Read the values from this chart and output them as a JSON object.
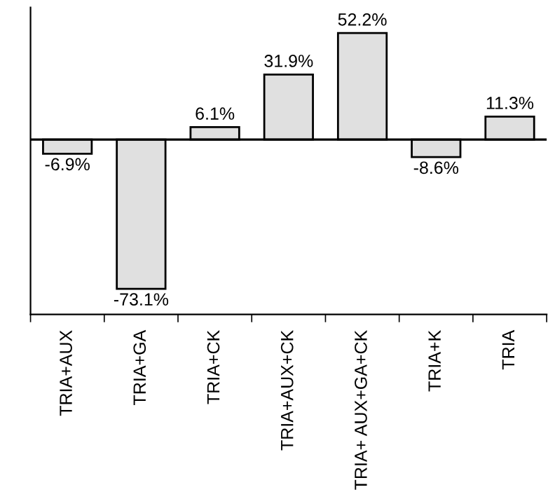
{
  "chart_data": {
    "type": "bar",
    "categories": [
      "TRIA+AUX",
      "TRIA+GA",
      "TRIA+CK",
      "TRIA+AUX+CK",
      "TRIA+ AUX+GA+CK",
      "TRIA+K",
      "TRIA"
    ],
    "values": [
      -6.9,
      -73.1,
      6.1,
      31.9,
      52.2,
      -8.6,
      11.3
    ],
    "value_labels": [
      "-6.9%",
      "-73.1%",
      "6.1%",
      "31.9%",
      "52.2%",
      "-8.6%",
      "11.3%"
    ],
    "color": "#e0e0e0",
    "grid": false,
    "legend": false,
    "tick_labels": "x"
  }
}
